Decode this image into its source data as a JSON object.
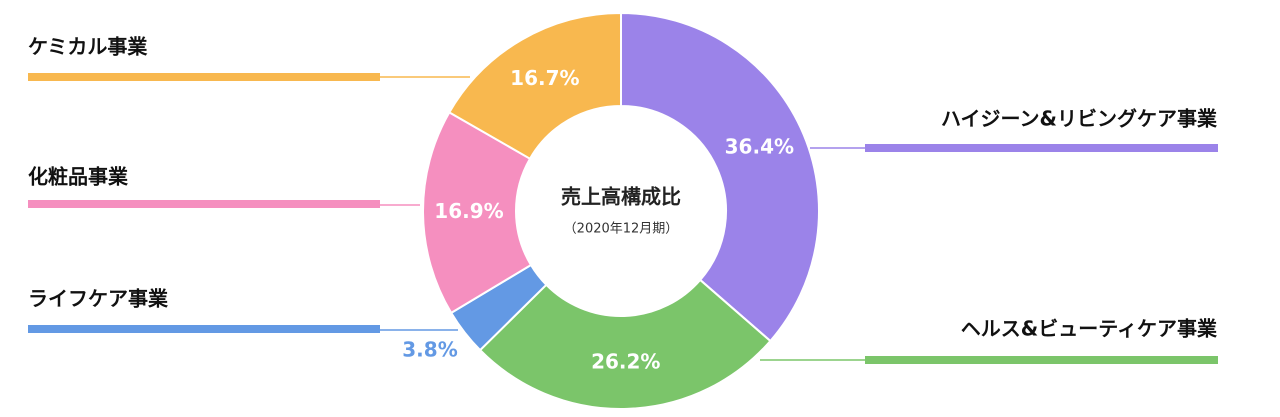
{
  "chart_data": {
    "type": "donut",
    "title": "売上高構成比",
    "subtitle": "（2020年12月期）",
    "categories": [
      "ハイジーン&リビングケア事業",
      "ヘルス&ビューティケア事業",
      "ライフケア事業",
      "化粧品事業",
      "ケミカル事業"
    ],
    "values": [
      36.4,
      26.2,
      3.8,
      16.9,
      16.7
    ],
    "value_labels": [
      "36.4%",
      "26.2%",
      "3.8%",
      "16.9%",
      "16.7%"
    ],
    "colors": [
      "#9b83e9",
      "#7bc56a",
      "#6399e4",
      "#f58fbf",
      "#f8b84f"
    ]
  }
}
